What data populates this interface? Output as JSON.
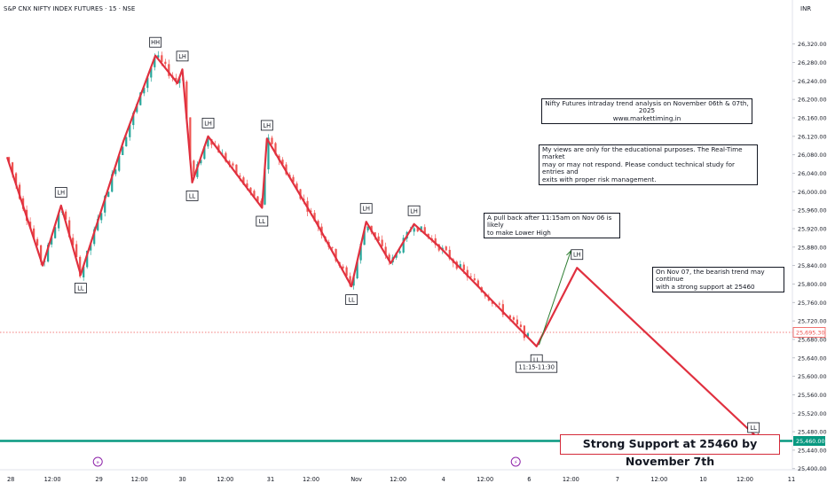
{
  "header": {
    "title": "S&P CNX NIFTY INDEX FUTURES · 15 · NSE",
    "currency": "INR"
  },
  "colors": {
    "candle_up": "#26a69a",
    "candle_down": "#ef5350",
    "trendline": "#e0303f",
    "support_line": "#089981",
    "projection_up": "#2e7d32",
    "last_price": "#ef5350",
    "support_label": "#089981"
  },
  "chart_data": {
    "type": "candlestick",
    "title": "",
    "ylim": [
      25380,
      26360
    ],
    "y_ticks": [
      25400,
      25440,
      25480,
      25520,
      25560,
      25600,
      25640,
      25680,
      25720,
      25760,
      25800,
      25840,
      25880,
      25920,
      25960,
      26000,
      26040,
      26080,
      26120,
      26160,
      26200,
      26240,
      26280,
      26320
    ],
    "y_tick_labels": [
      "25,400.00",
      "25,440.00",
      "25,480.00",
      "25,520.00",
      "25,560.00",
      "25,600.00",
      "25,640.00",
      "25,680.00",
      "25,720.00",
      "25,760.00",
      "25,800.00",
      "25,840.00",
      "25,880.00",
      "25,920.00",
      "25,960.00",
      "26,000.00",
      "26,040.00",
      "26,080.00",
      "26,120.00",
      "26,160.00",
      "26,200.00",
      "26,240.00",
      "26,280.00",
      "26,320.00"
    ],
    "x_ticks": [
      {
        "label": "28",
        "t": 0.3
      },
      {
        "label": "12:00",
        "t": 3.7
      },
      {
        "label": "29",
        "t": 7.5
      },
      {
        "label": "12:00",
        "t": 10.8
      },
      {
        "label": "30",
        "t": 14.3
      },
      {
        "label": "12:00",
        "t": 17.8
      },
      {
        "label": "31",
        "t": 21.5
      },
      {
        "label": "12:00",
        "t": 24.8
      },
      {
        "label": "Nov",
        "t": 28.5
      },
      {
        "label": "12:00",
        "t": 31.9
      },
      {
        "label": "4",
        "t": 35.6
      },
      {
        "label": "12:00",
        "t": 39.0
      },
      {
        "label": "6",
        "t": 42.6
      },
      {
        "label": "12:00",
        "t": 46.0
      },
      {
        "label": "7",
        "t": 49.8
      },
      {
        "label": "12:00",
        "t": 53.2
      },
      {
        "label": "10",
        "t": 56.8
      },
      {
        "label": "12:00",
        "t": 60.2
      },
      {
        "label": "11",
        "t": 64.0
      }
    ],
    "last_price": 25695.3,
    "last_price_label": "25,695.30",
    "support_level": 25460,
    "support_label": "25,460.00",
    "trend_path": [
      {
        "t": 0.0,
        "p": 26075
      },
      {
        "t": 2.9,
        "p": 25840
      },
      {
        "t": 4.4,
        "p": 25970
      },
      {
        "t": 6.0,
        "p": 25820
      },
      {
        "t": 9.5,
        "p": 26110
      },
      {
        "t": 12.1,
        "p": 26295
      },
      {
        "t": 13.9,
        "p": 26235
      },
      {
        "t": 14.3,
        "p": 26265
      },
      {
        "t": 15.1,
        "p": 26020
      },
      {
        "t": 16.4,
        "p": 26120
      },
      {
        "t": 20.8,
        "p": 25965
      },
      {
        "t": 21.2,
        "p": 26115
      },
      {
        "t": 25.3,
        "p": 25930
      },
      {
        "t": 28.1,
        "p": 25795
      },
      {
        "t": 29.3,
        "p": 25935
      },
      {
        "t": 31.3,
        "p": 25845
      },
      {
        "t": 33.2,
        "p": 25930
      },
      {
        "t": 35.3,
        "p": 25880
      },
      {
        "t": 43.2,
        "p": 25665
      },
      {
        "t": 46.5,
        "p": 25835
      },
      {
        "t": 61.5,
        "p": 25460
      }
    ],
    "projection_up": [
      {
        "t": 43.4,
        "p": 25668
      },
      {
        "t": 46.0,
        "p": 25872
      }
    ],
    "labels": [
      {
        "text": "LH",
        "t": 4.4,
        "p": 25970,
        "pos": "above"
      },
      {
        "text": "LL",
        "t": 6.0,
        "p": 25820,
        "pos": "below"
      },
      {
        "text": "HH",
        "t": 12.1,
        "p": 26295,
        "pos": "above"
      },
      {
        "text": "LH",
        "t": 14.3,
        "p": 26265,
        "pos": "above"
      },
      {
        "text": "LL",
        "t": 15.1,
        "p": 26020,
        "pos": "below"
      },
      {
        "text": "LH",
        "t": 16.4,
        "p": 26120,
        "pos": "above"
      },
      {
        "text": "LH",
        "t": 21.2,
        "p": 26115,
        "pos": "above"
      },
      {
        "text": "LL",
        "t": 20.8,
        "p": 25965,
        "pos": "below"
      },
      {
        "text": "LH",
        "t": 29.3,
        "p": 25935,
        "pos": "above"
      },
      {
        "text": "LL",
        "t": 28.1,
        "p": 25795,
        "pos": "below"
      },
      {
        "text": "LH",
        "t": 33.2,
        "p": 25930,
        "pos": "above"
      },
      {
        "text": "LL",
        "t": 43.2,
        "p": 25665,
        "pos": "below"
      },
      {
        "text": "LH",
        "t": 46.5,
        "p": 25835,
        "pos": "above"
      },
      {
        "text": "LL",
        "t": 60.9,
        "p": 25460,
        "pos": "above"
      }
    ],
    "time_label": {
      "text": "11:15-11:30",
      "t": 43.2,
      "p": 25620
    }
  },
  "annotations": {
    "title_box": [
      "Nifty Futures intraday trend analysis on November 06th & 07th, 2025",
      "www.markettiming.in"
    ],
    "disclaimer": [
      "My views are only for the educational purposes. The Real-Time market",
      "may or may not respond. Please conduct technical study for entries and",
      "exits with proper risk management."
    ],
    "pullback": [
      "A pull back after 11:15am on Nov 06 is likely",
      "to make Lower High"
    ],
    "nov07": [
      "On Nov 07, the bearish trend may continue",
      "with a strong support at 25460"
    ],
    "support_banner": "Strong Support at 25460 by November 7th"
  }
}
